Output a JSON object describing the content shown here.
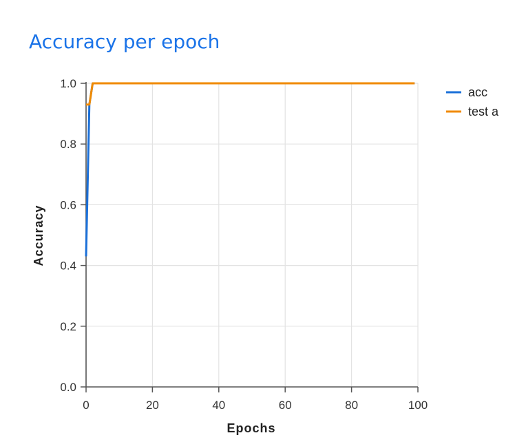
{
  "title": "Accuracy per epoch",
  "colors": {
    "title": "#1a73e8",
    "acc": "#1a6fd8",
    "test": "#f08a00",
    "grid": "#e3e3e3",
    "axis": "#555555"
  },
  "chart_data": {
    "type": "line",
    "title": "Accuracy per epoch",
    "xlabel": "Epochs",
    "ylabel": "Accuracy",
    "xlim": [
      0,
      100
    ],
    "ylim": [
      0.0,
      1.0
    ],
    "xticks": [
      "0",
      "20",
      "40",
      "60",
      "80",
      "100"
    ],
    "yticks": [
      "0.0",
      "0.2",
      "0.4",
      "0.6",
      "0.8",
      "1.0"
    ],
    "grid": true,
    "legend_position": "right",
    "series": [
      {
        "name": "acc",
        "color": "#1a6fd8",
        "x": [
          0,
          1,
          2,
          3,
          4,
          5,
          10,
          20,
          30,
          40,
          50,
          60,
          70,
          80,
          90,
          99
        ],
        "y": [
          0.43,
          0.93,
          1.0,
          1.0,
          1.0,
          1.0,
          1.0,
          1.0,
          1.0,
          1.0,
          1.0,
          1.0,
          1.0,
          1.0,
          1.0,
          1.0
        ]
      },
      {
        "name": "test a",
        "color": "#f08a00",
        "x": [
          0,
          1,
          2,
          3,
          4,
          5,
          10,
          20,
          30,
          40,
          50,
          60,
          70,
          80,
          90,
          99
        ],
        "y": [
          0.93,
          0.93,
          1.0,
          1.0,
          1.0,
          1.0,
          1.0,
          1.0,
          1.0,
          1.0,
          1.0,
          1.0,
          1.0,
          1.0,
          1.0,
          1.0
        ]
      }
    ]
  }
}
